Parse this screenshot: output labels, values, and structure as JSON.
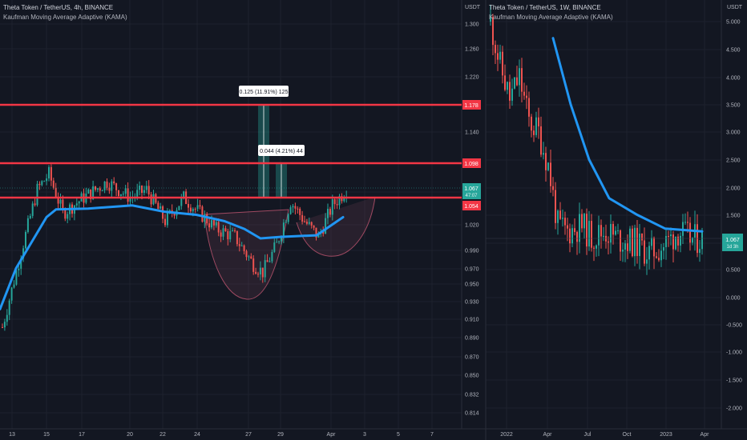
{
  "colors": {
    "background": "#131722",
    "grid": "#1e222d",
    "up": "#26a69a",
    "down": "#ef5350",
    "kama": "#2196f3",
    "level": "#f23645",
    "axis_text": "#b2b5be"
  },
  "left_panel": {
    "title": "Theta Token / TetherUS, 4h, BINANCE",
    "indicator": "Kaufman Moving Average Adaptive (KAMA)",
    "y_unit": "USDT",
    "y_ticks": [
      "1.300",
      "1.260",
      "1.220",
      "1.180",
      "1.140",
      "1.098",
      "1.060",
      "1.020",
      "0.990",
      "0.970",
      "0.950",
      "0.930",
      "0.910",
      "0.890",
      "0.870",
      "0.850",
      "0.832",
      "0.814"
    ],
    "x_ticks": [
      "13",
      "15",
      "17",
      "20",
      "22",
      "24",
      "27",
      "29",
      "Apr",
      "3",
      "5",
      "7"
    ],
    "last_price": "1.067",
    "countdown": "47:07",
    "level_labels": [
      "1.178",
      "1.098",
      "1.054"
    ],
    "measure_1": "0.125 (11.91%) 125",
    "measure_2": "0.044 (4.21%) 44"
  },
  "right_panel": {
    "title": "Theta Token / TetherUS, 1W, BINANCE",
    "indicator": "Kaufman Moving Average Adaptive (KAMA)",
    "y_unit": "USDT",
    "y_ticks": [
      "5.000",
      "4.500",
      "4.000",
      "3.500",
      "3.000",
      "2.500",
      "2.000",
      "1.500",
      "1.000",
      "0.500",
      "0.000",
      "-0.500",
      "-1.000",
      "-1.500",
      "-2.000"
    ],
    "x_ticks": [
      "2022",
      "Apr",
      "Jul",
      "Oct",
      "2023",
      "Apr"
    ],
    "last_price": "1.067",
    "countdown": "1d 3h"
  },
  "chart_data": [
    {
      "type": "candlestick",
      "title": "Theta Token / TetherUS, 4h, BINANCE",
      "interval": "4h",
      "ylabel": "USDT",
      "x_range": [
        "Mar 12",
        "Apr 7"
      ],
      "ylim": [
        0.805,
        1.32
      ],
      "price_levels": [
        1.178,
        1.098,
        1.054
      ],
      "last_price": 1.067,
      "kama_series": [
        {
          "x": "Mar 12",
          "y": 0.918
        },
        {
          "x": "Mar 13",
          "y": 0.97
        },
        {
          "x": "Mar 14",
          "y": 1.035
        },
        {
          "x": "Mar 15",
          "y": 1.045
        },
        {
          "x": "Mar 17",
          "y": 1.046
        },
        {
          "x": "Mar 20",
          "y": 1.05
        },
        {
          "x": "Mar 22",
          "y": 1.042
        },
        {
          "x": "Mar 24",
          "y": 1.038
        },
        {
          "x": "Mar 26",
          "y": 1.03
        },
        {
          "x": "Mar 27",
          "y": 1.02
        },
        {
          "x": "Mar 28",
          "y": 1.008
        },
        {
          "x": "Mar 29",
          "y": 1.01
        },
        {
          "x": "Mar 30",
          "y": 1.012
        },
        {
          "x": "Apr 1",
          "y": 1.035
        }
      ],
      "annotations": [
        {
          "text": "0.125 (11.91%) 125",
          "from": 1.054,
          "to": 1.178
        },
        {
          "text": "0.044 (4.21%) 44",
          "from": 1.054,
          "to": 1.098
        }
      ]
    },
    {
      "type": "candlestick",
      "title": "Theta Token / TetherUS, 1W, BINANCE",
      "interval": "1W",
      "ylabel": "USDT",
      "x_range": [
        "2021-10",
        "2023-04"
      ],
      "ylim": [
        -2.2,
        5.2
      ],
      "last_price": 1.067,
      "kama_series": [
        {
          "x": "2022-04",
          "y": 4.7
        },
        {
          "x": "2022-05",
          "y": 3.5
        },
        {
          "x": "2022-06",
          "y": 2.5
        },
        {
          "x": "2022-07",
          "y": 1.8
        },
        {
          "x": "2022-09",
          "y": 1.5
        },
        {
          "x": "2022-11",
          "y": 1.25
        },
        {
          "x": "2023-04",
          "y": 1.2
        }
      ]
    }
  ]
}
